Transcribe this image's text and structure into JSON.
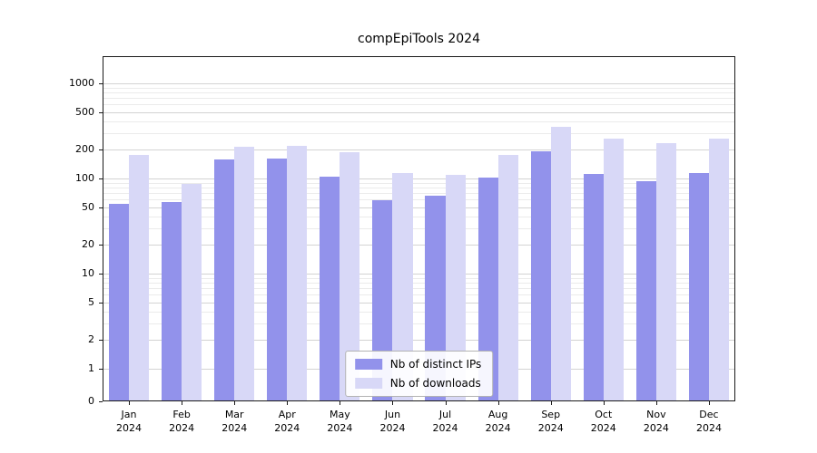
{
  "chart_data": {
    "type": "bar",
    "title": "compEpiTools 2024",
    "categories": [
      "Jan",
      "Feb",
      "Mar",
      "Apr",
      "May",
      "Jun",
      "Jul",
      "Aug",
      "Sep",
      "Oct",
      "Nov",
      "Dec"
    ],
    "x_year": "2024",
    "series": [
      {
        "name": "Nb of distinct IPs",
        "color": "#9292eb",
        "values": [
          54,
          57,
          160,
          163,
          105,
          59,
          66,
          103,
          192,
          112,
          93,
          113
        ]
      },
      {
        "name": "Nb of downloads",
        "color": "#d8d8f7",
        "values": [
          175,
          88,
          215,
          222,
          190,
          115,
          110,
          175,
          350,
          265,
          235,
          265
        ]
      }
    ],
    "yticks": [
      0,
      1,
      2,
      5,
      10,
      20,
      50,
      100,
      200,
      500,
      1000
    ],
    "yscale": "log",
    "ylim": [
      0,
      1800
    ],
    "grid": true,
    "legend_position": "lower center"
  }
}
